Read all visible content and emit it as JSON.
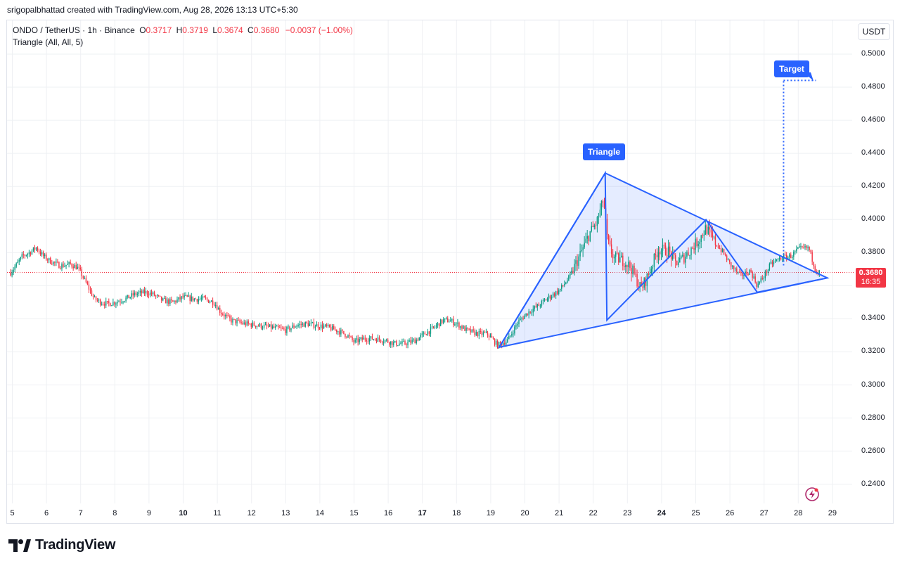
{
  "header": {
    "author_line": "srigopalbhattad created with TradingView.com, Aug 28, 2026 13:13 UTC+5:30"
  },
  "legend": {
    "symbol": "ONDO / TetherUS · 1h · Binance",
    "o_label": "O",
    "o_value": "0.3717",
    "h_label": "H",
    "h_value": "0.3719",
    "l_label": "L",
    "l_value": "0.3674",
    "c_label": "C",
    "c_value": "0.3680",
    "change": "−0.0037 (−1.00%)",
    "indicator": "Triangle (All, All, 5)"
  },
  "price_axis": {
    "currency": "USDT",
    "last_price": "0.3680",
    "countdown": "16:35"
  },
  "annotations": {
    "triangle_label": "Triangle",
    "target_label": "Target"
  },
  "branding": {
    "logo_text": "TradingView"
  },
  "colors": {
    "up": "#089981",
    "down": "#f23645",
    "pattern_line": "#2962ff",
    "pattern_fill": "#2962ff",
    "grid": "#e0e3eb"
  },
  "chart_data": {
    "type": "candlestick",
    "title": "ONDO / TetherUS · 1h · Binance",
    "ylim": [
      0.232,
      0.5128
    ],
    "y_ticks": [
      "0.2400",
      "0.2600",
      "0.2800",
      "0.3000",
      "0.3200",
      "0.3400",
      "0.3600",
      "0.3800",
      "0.4000",
      "0.4200",
      "0.4400",
      "0.4600",
      "0.4800",
      "0.5000"
    ],
    "x_ticks": [
      {
        "label": "5",
        "bold": false
      },
      {
        "label": "6",
        "bold": false
      },
      {
        "label": "7",
        "bold": false
      },
      {
        "label": "8",
        "bold": false
      },
      {
        "label": "9",
        "bold": false
      },
      {
        "label": "10",
        "bold": true
      },
      {
        "label": "11",
        "bold": false
      },
      {
        "label": "12",
        "bold": false
      },
      {
        "label": "13",
        "bold": false
      },
      {
        "label": "14",
        "bold": false
      },
      {
        "label": "15",
        "bold": false
      },
      {
        "label": "16",
        "bold": false
      },
      {
        "label": "17",
        "bold": true
      },
      {
        "label": "18",
        "bold": false
      },
      {
        "label": "19",
        "bold": false
      },
      {
        "label": "20",
        "bold": false
      },
      {
        "label": "21",
        "bold": false
      },
      {
        "label": "22",
        "bold": false
      },
      {
        "label": "23",
        "bold": false
      },
      {
        "label": "24",
        "bold": true
      },
      {
        "label": "25",
        "bold": false
      },
      {
        "label": "26",
        "bold": false
      },
      {
        "label": "27",
        "bold": false
      },
      {
        "label": "28",
        "bold": false
      },
      {
        "label": "29",
        "bold": false
      }
    ],
    "price_anchors": [
      [
        4.95,
        0.368
      ],
      [
        5.1,
        0.372
      ],
      [
        5.3,
        0.378
      ],
      [
        5.5,
        0.38
      ],
      [
        5.7,
        0.383
      ],
      [
        5.9,
        0.378
      ],
      [
        6.1,
        0.375
      ],
      [
        6.4,
        0.372
      ],
      [
        6.7,
        0.373
      ],
      [
        6.9,
        0.371
      ],
      [
        7.0,
        0.368
      ],
      [
        7.2,
        0.36
      ],
      [
        7.4,
        0.352
      ],
      [
        7.6,
        0.35
      ],
      [
        7.8,
        0.349
      ],
      [
        8.0,
        0.35
      ],
      [
        8.3,
        0.352
      ],
      [
        8.6,
        0.355
      ],
      [
        8.9,
        0.356
      ],
      [
        9.1,
        0.355
      ],
      [
        9.4,
        0.351
      ],
      [
        9.7,
        0.35
      ],
      [
        10.0,
        0.353
      ],
      [
        10.3,
        0.352
      ],
      [
        10.6,
        0.352
      ],
      [
        10.9,
        0.35
      ],
      [
        11.1,
        0.344
      ],
      [
        11.4,
        0.339
      ],
      [
        11.8,
        0.337
      ],
      [
        12.2,
        0.336
      ],
      [
        12.5,
        0.335
      ],
      [
        12.8,
        0.334
      ],
      [
        13.0,
        0.333
      ],
      [
        13.3,
        0.336
      ],
      [
        13.6,
        0.337
      ],
      [
        13.9,
        0.336
      ],
      [
        14.2,
        0.335
      ],
      [
        14.5,
        0.333
      ],
      [
        14.8,
        0.33
      ],
      [
        15.0,
        0.326
      ],
      [
        15.3,
        0.328
      ],
      [
        15.6,
        0.328
      ],
      [
        15.9,
        0.327
      ],
      [
        16.2,
        0.325
      ],
      [
        16.5,
        0.325
      ],
      [
        16.8,
        0.327
      ],
      [
        17.0,
        0.33
      ],
      [
        17.3,
        0.334
      ],
      [
        17.6,
        0.339
      ],
      [
        17.8,
        0.339
      ],
      [
        18.0,
        0.337
      ],
      [
        18.3,
        0.333
      ],
      [
        18.6,
        0.331
      ],
      [
        18.9,
        0.331
      ],
      [
        19.2,
        0.324
      ],
      [
        19.5,
        0.327
      ],
      [
        19.8,
        0.338
      ],
      [
        20.1,
        0.344
      ],
      [
        20.4,
        0.348
      ],
      [
        20.7,
        0.353
      ],
      [
        21.0,
        0.357
      ],
      [
        21.3,
        0.365
      ],
      [
        21.6,
        0.378
      ],
      [
        21.9,
        0.392
      ],
      [
        22.1,
        0.398
      ],
      [
        22.3,
        0.412
      ],
      [
        22.42,
        0.386
      ],
      [
        22.6,
        0.377
      ],
      [
        22.9,
        0.375
      ],
      [
        23.1,
        0.371
      ],
      [
        23.4,
        0.358
      ],
      [
        23.6,
        0.366
      ],
      [
        23.9,
        0.382
      ],
      [
        24.2,
        0.381
      ],
      [
        24.4,
        0.374
      ],
      [
        24.6,
        0.376
      ],
      [
        24.9,
        0.383
      ],
      [
        25.1,
        0.388
      ],
      [
        25.3,
        0.395
      ],
      [
        25.5,
        0.388
      ],
      [
        25.8,
        0.38
      ],
      [
        26.0,
        0.373
      ],
      [
        26.3,
        0.366
      ],
      [
        26.6,
        0.369
      ],
      [
        26.8,
        0.36
      ],
      [
        27.0,
        0.366
      ],
      [
        27.2,
        0.373
      ],
      [
        27.5,
        0.377
      ],
      [
        27.8,
        0.378
      ],
      [
        28.0,
        0.382
      ],
      [
        28.3,
        0.383
      ],
      [
        28.5,
        0.37
      ],
      [
        28.6,
        0.368
      ]
    ],
    "pattern": {
      "name": "Triangle",
      "vertices": [
        [
          19.25,
          0.3228
        ],
        [
          22.35,
          0.4281
        ],
        [
          28.85,
          0.3647
        ]
      ],
      "zigzag": [
        [
          19.25,
          0.3228
        ],
        [
          22.35,
          0.4281
        ],
        [
          22.4,
          0.3392
        ],
        [
          25.3,
          0.3999
        ],
        [
          26.8,
          0.356
        ],
        [
          28.85,
          0.3647
        ]
      ],
      "target": {
        "x": 27.57,
        "from": 0.368,
        "to": 0.4841,
        "label": "Target"
      }
    },
    "last": {
      "price": 0.368,
      "label": "0.3680",
      "countdown": "16:35"
    }
  }
}
